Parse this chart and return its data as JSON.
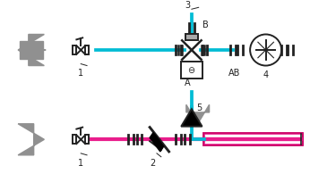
{
  "bg_color": "#ffffff",
  "line_color_cyan": "#00bcd4",
  "line_color_pink": "#e91e8c",
  "arrow_gray": "#909090",
  "valve_color": "#222222",
  "text_color": "#222222",
  "label_1_top": "1",
  "label_3": "3",
  "label_AB": "AB",
  "label_A": "A",
  "label_B": "B",
  "label_4": "4",
  "label_5": "5",
  "label_1_bot": "1",
  "label_2": "2"
}
